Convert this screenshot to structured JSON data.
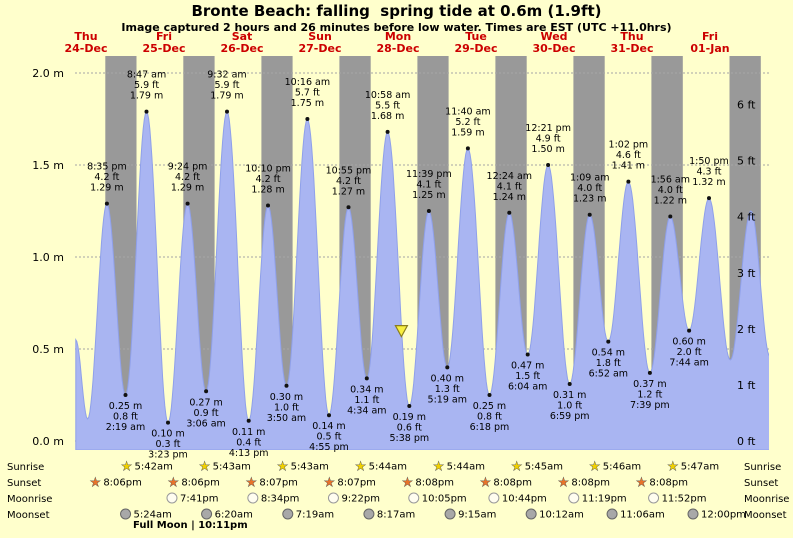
{
  "colors": {
    "background": "#ffffcc",
    "night_band": "#999999",
    "tide_fill": "#a9b5f2",
    "tide_edge": "#8fa0ea",
    "day_label": "#cc0000",
    "grid": "#a6a6a6",
    "text": "#000000",
    "sunrise_star": "#f0d000",
    "sunset_star": "#e8732a",
    "moonrise_circle": "#fffdf0",
    "moonset_circle": "#a8a8a8",
    "marker_fill": "#f8ef3e",
    "marker_edge": "#8a7d1e"
  },
  "chart_data": {
    "type": "area",
    "title": "Bronte Beach: falling  spring tide at 0.6m (1.9ft)",
    "subtitle": "Image captured 2 hours and 26 minutes before low water. Times are EST (UTC +11.0hrs)",
    "ylim_m": [
      0.0,
      2.15
    ],
    "y_axis_left_labels": [
      "2.0 m",
      "1.5 m",
      "1.0 m",
      "0.5 m",
      "0.0 m"
    ],
    "y_axis_right_labels": [
      "6 ft",
      "5 ft",
      "4 ft",
      "3 ft",
      "2 ft",
      "1 ft",
      "0 ft"
    ],
    "x_axis_days": [
      {
        "name": "Thu",
        "date": "24-Dec"
      },
      {
        "name": "Fri",
        "date": "25-Dec"
      },
      {
        "name": "Sat",
        "date": "26-Dec"
      },
      {
        "name": "Sun",
        "date": "27-Dec"
      },
      {
        "name": "Mon",
        "date": "28-Dec"
      },
      {
        "name": "Tue",
        "date": "29-Dec"
      },
      {
        "name": "Wed",
        "date": "30-Dec"
      },
      {
        "name": "Thu",
        "date": "31-Dec"
      },
      {
        "name": "Fri",
        "date": "01-Jan"
      }
    ],
    "tide_events": [
      {
        "day": 0,
        "hour": 11.0,
        "m": 0.55,
        "edge": true
      },
      {
        "day": 0,
        "hour": 14.65,
        "m": 0.12,
        "edge": true
      },
      {
        "day": 0,
        "time": "8:35 pm",
        "m": 1.29,
        "ft": 4.2,
        "type": "high"
      },
      {
        "day": 1,
        "time": "2:19 am",
        "m": 0.25,
        "ft": 0.8,
        "type": "low"
      },
      {
        "day": 1,
        "time": "8:47 am",
        "m": 1.79,
        "ft": 5.9,
        "type": "high"
      },
      {
        "day": 1,
        "time": "3:23 pm",
        "m": 0.1,
        "ft": 0.3,
        "type": "low"
      },
      {
        "day": 1,
        "time": "9:24 pm",
        "m": 1.29,
        "ft": 4.2,
        "type": "high"
      },
      {
        "day": 2,
        "time": "3:06 am",
        "m": 0.27,
        "ft": 0.9,
        "type": "low"
      },
      {
        "day": 2,
        "time": "9:32 am",
        "m": 1.79,
        "ft": 5.9,
        "type": "high"
      },
      {
        "day": 2,
        "time": "4:13 pm",
        "m": 0.11,
        "ft": 0.4,
        "type": "low"
      },
      {
        "day": 2,
        "time": "10:10 pm",
        "m": 1.28,
        "ft": 4.2,
        "type": "high"
      },
      {
        "day": 3,
        "time": "3:50 am",
        "m": 0.3,
        "ft": 1.0,
        "type": "low"
      },
      {
        "day": 3,
        "time": "10:16 am",
        "m": 1.75,
        "ft": 5.7,
        "type": "high"
      },
      {
        "day": 3,
        "time": "4:55 pm",
        "m": 0.14,
        "ft": 0.5,
        "type": "low"
      },
      {
        "day": 3,
        "time": "10:55 pm",
        "m": 1.27,
        "ft": 4.2,
        "type": "high"
      },
      {
        "day": 4,
        "time": "4:34 am",
        "m": 0.34,
        "ft": 1.1,
        "type": "low"
      },
      {
        "day": 4,
        "time": "10:58 am",
        "m": 1.68,
        "ft": 5.5,
        "type": "high"
      },
      {
        "day": 4,
        "time": "5:38 pm",
        "m": 0.19,
        "ft": 0.6,
        "type": "low"
      },
      {
        "day": 4,
        "time": "11:39 pm",
        "m": 1.25,
        "ft": 4.1,
        "type": "high"
      },
      {
        "day": 5,
        "time": "5:19 am",
        "m": 0.4,
        "ft": 1.3,
        "type": "low"
      },
      {
        "day": 5,
        "time": "11:40 am",
        "m": 1.59,
        "ft": 5.2,
        "type": "high"
      },
      {
        "day": 5,
        "time": "6:18 pm",
        "m": 0.25,
        "ft": 0.8,
        "type": "low"
      },
      {
        "day": 6,
        "time": "12:24 am",
        "m": 1.24,
        "ft": 4.1,
        "type": "high"
      },
      {
        "day": 6,
        "time": "6:04 am",
        "m": 0.47,
        "ft": 1.5,
        "type": "low"
      },
      {
        "day": 6,
        "time": "12:21 pm",
        "m": 1.5,
        "ft": 4.9,
        "type": "high"
      },
      {
        "day": 6,
        "time": "6:59 pm",
        "m": 0.31,
        "ft": 1.0,
        "type": "low"
      },
      {
        "day": 7,
        "time": "1:09 am",
        "m": 1.23,
        "ft": 4.0,
        "type": "high"
      },
      {
        "day": 7,
        "time": "6:52 am",
        "m": 0.54,
        "ft": 1.8,
        "type": "low"
      },
      {
        "day": 7,
        "time": "1:02 pm",
        "m": 1.41,
        "ft": 4.6,
        "type": "high"
      },
      {
        "day": 7,
        "time": "7:39 pm",
        "m": 0.37,
        "ft": 1.2,
        "type": "low"
      },
      {
        "day": 8,
        "time": "1:56 am",
        "m": 1.22,
        "ft": 4.0,
        "type": "high"
      },
      {
        "day": 8,
        "time": "7:44 am",
        "m": 0.6,
        "ft": 2.0,
        "type": "low"
      },
      {
        "day": 8,
        "time": "1:50 pm",
        "m": 1.32,
        "ft": 4.3,
        "type": "high"
      },
      {
        "day": 8,
        "hour": 20.4,
        "m": 0.44,
        "edge": true
      },
      {
        "day": 9,
        "hour": 2.75,
        "m": 1.25,
        "edge": true
      },
      {
        "day": 9,
        "hour": 8.6,
        "m": 0.46,
        "edge": true
      }
    ],
    "current_marker": {
      "day": 4,
      "hour": 15.2,
      "height_m": 0.6
    }
  },
  "astro": {
    "row_labels": [
      "Sunrise",
      "Sunset",
      "Moonrise",
      "Moonset"
    ],
    "sunrise": [
      {
        "day": 1,
        "time": "5:42am"
      },
      {
        "day": 2,
        "time": "5:43am"
      },
      {
        "day": 3,
        "time": "5:43am"
      },
      {
        "day": 4,
        "time": "5:44am"
      },
      {
        "day": 5,
        "time": "5:44am"
      },
      {
        "day": 6,
        "time": "5:45am"
      },
      {
        "day": 7,
        "time": "5:46am"
      },
      {
        "day": 8,
        "time": "5:47am"
      }
    ],
    "sunset": [
      {
        "day": 0,
        "time": "8:06pm"
      },
      {
        "day": 1,
        "time": "8:06pm"
      },
      {
        "day": 2,
        "time": "8:07pm"
      },
      {
        "day": 3,
        "time": "8:07pm"
      },
      {
        "day": 4,
        "time": "8:08pm"
      },
      {
        "day": 5,
        "time": "8:08pm"
      },
      {
        "day": 6,
        "time": "8:08pm"
      },
      {
        "day": 7,
        "time": "8:08pm"
      }
    ],
    "moonrise": [
      {
        "day": 1,
        "time": "7:41pm"
      },
      {
        "day": 2,
        "time": "8:34pm"
      },
      {
        "day": 3,
        "time": "9:22pm"
      },
      {
        "day": 4,
        "time": "10:05pm"
      },
      {
        "day": 5,
        "time": "10:44pm"
      },
      {
        "day": 6,
        "time": "11:19pm"
      },
      {
        "day": 7,
        "time": "11:52pm"
      }
    ],
    "moonset": [
      {
        "day": 1,
        "time": "5:24am"
      },
      {
        "day": 2,
        "time": "6:20am"
      },
      {
        "day": 3,
        "time": "7:19am"
      },
      {
        "day": 4,
        "time": "8:17am"
      },
      {
        "day": 5,
        "time": "9:15am"
      },
      {
        "day": 6,
        "time": "10:12am"
      },
      {
        "day": 7,
        "time": "11:06am"
      },
      {
        "day": 8,
        "time": "12:00pm"
      }
    ]
  },
  "footnote": "Full Moon | 10:11pm"
}
